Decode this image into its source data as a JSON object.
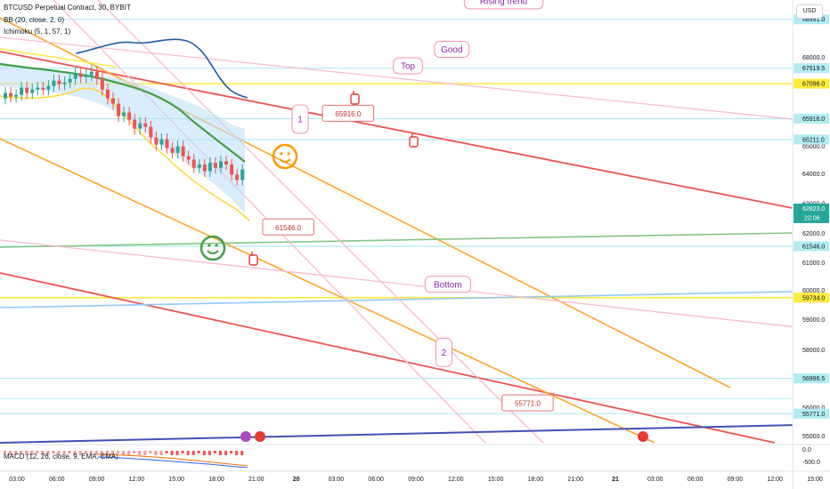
{
  "header": {
    "symbol": "BTCUSD Perpetual Contract, 30, BYBIT",
    "bb": "BB (20, close, 2, 0)",
    "ichimoku": "Ichimoku (5, 1, 57, 1)",
    "macd": "MACD (12, 26, close, 9, EMA, EMA)",
    "currency": "USD"
  },
  "chart_data": {
    "type": "candlestick",
    "x_ticks": [
      "03:00",
      "06:00",
      "09:00",
      "12:00",
      "15:00",
      "18:00",
      "21:00",
      "20",
      "03:00",
      "06:00",
      "09:00",
      "12:00",
      "15:00",
      "18:00",
      "21:00",
      "21",
      "03:00",
      "06:00",
      "09:00",
      "12:00",
      "15:00"
    ],
    "y_ticks": [
      68000,
      65000,
      64000,
      63000,
      62000,
      61000,
      60000,
      59000,
      58000,
      56000,
      55000
    ],
    "ylim": [
      54700,
      69500
    ],
    "price_labels": [
      {
        "value": 68991.0,
        "text": "68991.0",
        "color": "#b2ebf2"
      },
      {
        "value": 67619.5,
        "text": "67619.5",
        "color": "#b2ebf2"
      },
      {
        "value": 67096.0,
        "text": "67096.0",
        "color": "#ffeb3b"
      },
      {
        "value": 65916.0,
        "text": "65916.0",
        "color": "#b2ebf2"
      },
      {
        "value": 65211.0,
        "text": "65211.0",
        "color": "#b2ebf2"
      },
      {
        "value": 62823.0,
        "text": "62823.0",
        "color": "#26a69a",
        "sub": "22:06",
        "current": true
      },
      {
        "value": 61546.0,
        "text": "61546.0",
        "color": "#b2ebf2"
      },
      {
        "value": 59734.0,
        "text": "59734.0",
        "color": "#ffeb3b"
      },
      {
        "value": 56996.5,
        "text": "56996.5",
        "color": "#b2ebf2"
      },
      {
        "value": 55771.0,
        "text": "55771.0",
        "color": "#b2ebf2"
      }
    ],
    "macd_ticks": [
      "0.0",
      "-500.0"
    ],
    "callouts": [
      {
        "text": "Rising trend",
        "x": 12.2,
        "y": 69480
      },
      {
        "text": "Top",
        "x": 9.8,
        "y": 67700
      },
      {
        "text": "Good",
        "x": 10.9,
        "y": 68200
      },
      {
        "text": "65916.0",
        "x": 8.3,
        "y": 66100
      },
      {
        "text": "61546.0",
        "x": 6.8,
        "y": 62200
      },
      {
        "text": "Bottom",
        "x": 10.8,
        "y": 60200
      },
      {
        "text": "55771.0",
        "x": 12.8,
        "y": 56150
      },
      {
        "text": "1",
        "x": 7.1,
        "y": 65900
      },
      {
        "text": "2",
        "x": 10.7,
        "y": 57900
      }
    ]
  }
}
